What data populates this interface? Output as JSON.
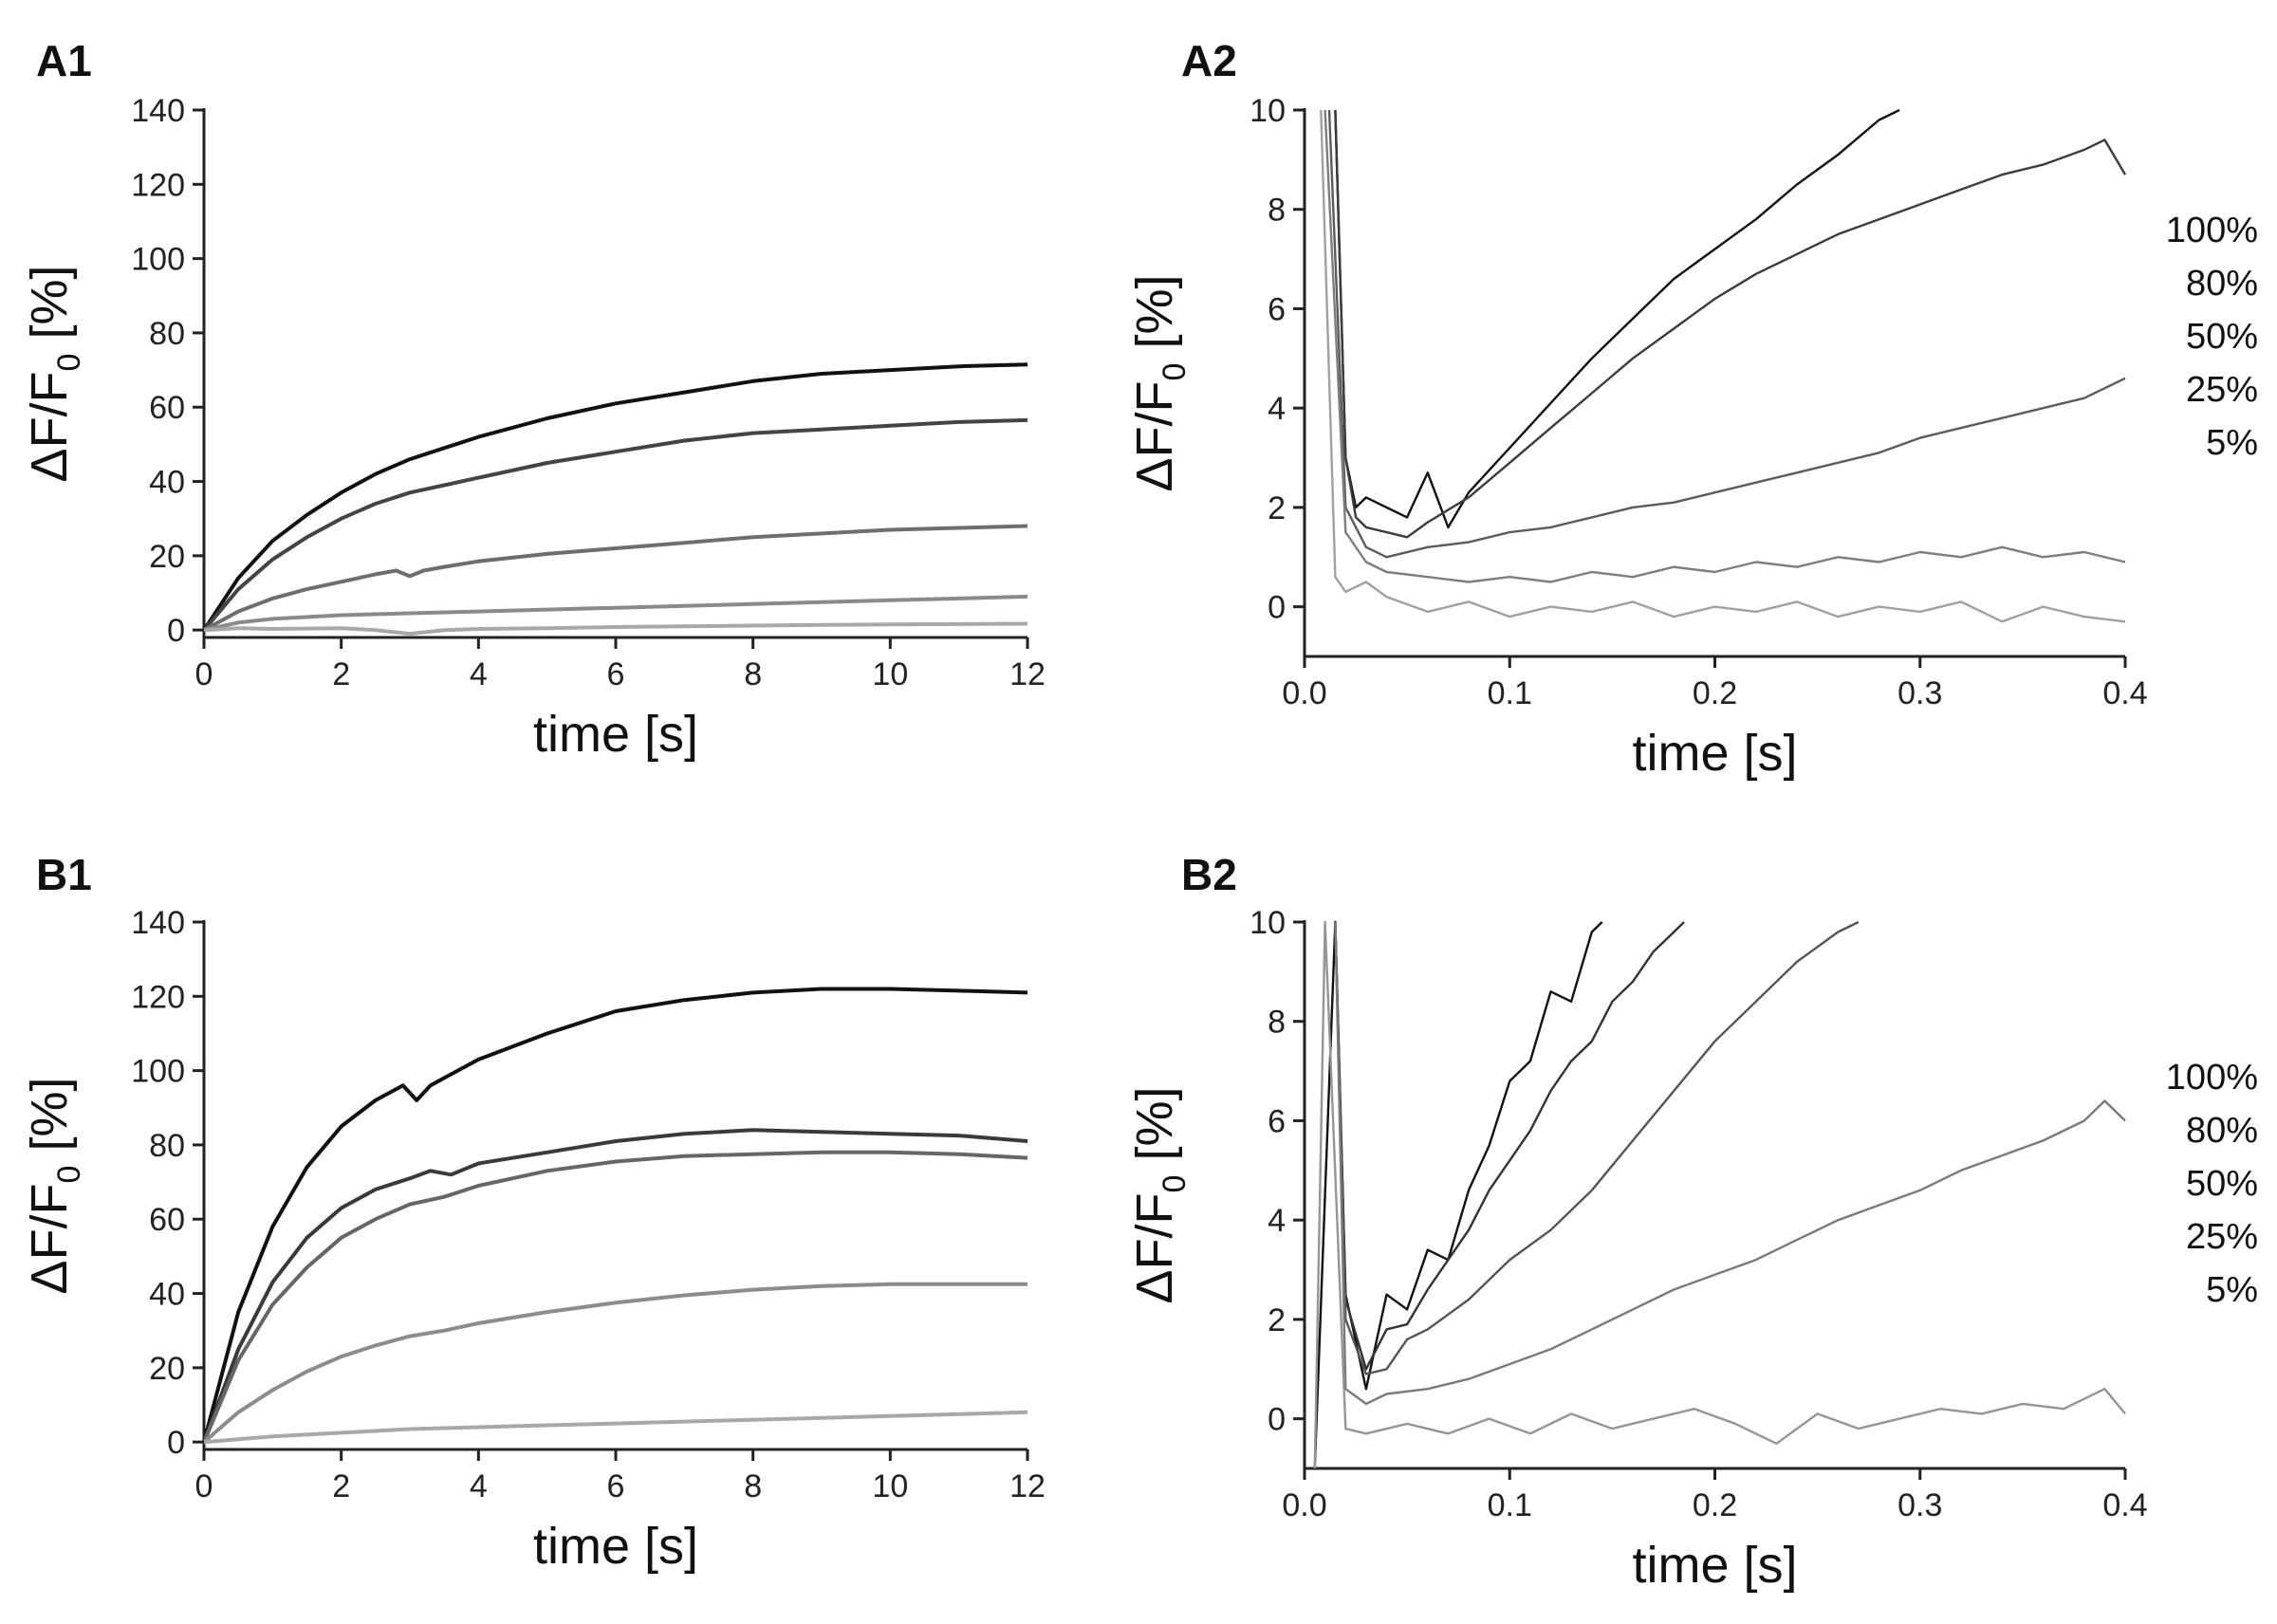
{
  "chart_data": [
    {
      "type": "line",
      "panel": "A1",
      "xlabel": "time [s]",
      "ylabel_main": "ΔF/F",
      "ylabel_sub": "0",
      "ylabel_unit": " [%]",
      "xlim": [
        0,
        12
      ],
      "ylim": [
        -2,
        140
      ],
      "xticks": [
        0,
        2,
        4,
        6,
        8,
        10,
        12
      ],
      "yticks": [
        0,
        20,
        40,
        60,
        80,
        100,
        120,
        140
      ],
      "xtick_decimals": 0,
      "series": [
        {
          "color": "#111111",
          "x": [
            0,
            0.5,
            1,
            1.5,
            2,
            2.5,
            3,
            3.5,
            4,
            5,
            6,
            7,
            8,
            9,
            10,
            11,
            12
          ],
          "y": [
            0,
            14,
            24,
            31,
            37,
            42,
            46,
            49,
            52,
            57,
            61,
            64,
            67,
            69,
            70,
            71,
            71.5
          ]
        },
        {
          "color": "#444444",
          "x": [
            0,
            0.5,
            1,
            1.5,
            2,
            2.5,
            3,
            3.5,
            4,
            5,
            6,
            7,
            8,
            9,
            10,
            11,
            12
          ],
          "y": [
            0,
            11,
            19,
            25,
            30,
            34,
            37,
            39,
            41,
            45,
            48,
            51,
            53,
            54,
            55,
            56,
            56.5
          ]
        },
        {
          "color": "#6e6e6e",
          "x": [
            0,
            0.5,
            1,
            1.5,
            2,
            2.5,
            2.8,
            3,
            3.2,
            3.5,
            4,
            5,
            6,
            7,
            8,
            9,
            10,
            11,
            12
          ],
          "y": [
            0,
            5,
            8.5,
            11,
            13,
            15,
            16,
            14.5,
            16,
            17,
            18.5,
            20.5,
            22,
            23.5,
            25,
            26,
            27,
            27.5,
            28
          ]
        },
        {
          "color": "#8a8a8a",
          "x": [
            0,
            0.5,
            1,
            2,
            3,
            4,
            5,
            6,
            7,
            8,
            9,
            10,
            11,
            12
          ],
          "y": [
            0,
            2,
            3,
            4,
            4.5,
            5,
            5.5,
            6,
            6.5,
            7,
            7.5,
            8,
            8.5,
            9
          ]
        },
        {
          "color": "#a8a8a8",
          "x": [
            0,
            0.5,
            1,
            2,
            2.5,
            3,
            3.5,
            4,
            5,
            6,
            7,
            8,
            9,
            10,
            11,
            12
          ],
          "y": [
            0,
            0.5,
            0.3,
            0.5,
            0,
            -1,
            0,
            0.3,
            0.5,
            0.8,
            1,
            1.2,
            1.4,
            1.5,
            1.6,
            1.7
          ]
        }
      ]
    },
    {
      "type": "line",
      "panel": "A2",
      "xlabel": "time [s]",
      "ylabel_main": "ΔF/F",
      "ylabel_sub": "0",
      "ylabel_unit": " [%]",
      "xlim": [
        0,
        0.4
      ],
      "ylim": [
        -1,
        10
      ],
      "xticks": [
        0.0,
        0.1,
        0.2,
        0.3,
        0.4
      ],
      "yticks": [
        0,
        2,
        4,
        6,
        8,
        10
      ],
      "xtick_decimals": 1,
      "legend_labels": [
        "100%",
        "80%",
        "50%",
        "25%",
        "5%"
      ],
      "series": [
        {
          "color": "#111111",
          "x": [
            0.015,
            0.02,
            0.025,
            0.03,
            0.04,
            0.05,
            0.06,
            0.07,
            0.08,
            0.1,
            0.12,
            0.14,
            0.16,
            0.18,
            0.2,
            0.22,
            0.24,
            0.26,
            0.28,
            0.29
          ],
          "y": [
            10,
            3,
            2,
            2.2,
            2.0,
            1.8,
            2.7,
            1.6,
            2.3,
            3.2,
            4.1,
            5.0,
            5.8,
            6.6,
            7.2,
            7.8,
            8.5,
            9.1,
            9.8,
            10
          ]
        },
        {
          "color": "#3c3c3c",
          "x": [
            0.015,
            0.02,
            0.025,
            0.03,
            0.04,
            0.05,
            0.06,
            0.08,
            0.1,
            0.12,
            0.14,
            0.16,
            0.18,
            0.2,
            0.22,
            0.24,
            0.26,
            0.28,
            0.3,
            0.32,
            0.34,
            0.36,
            0.38,
            0.39,
            0.4
          ],
          "y": [
            10,
            3,
            1.8,
            1.6,
            1.5,
            1.4,
            1.7,
            2.2,
            2.9,
            3.6,
            4.3,
            5.0,
            5.6,
            6.2,
            6.7,
            7.1,
            7.5,
            7.8,
            8.1,
            8.4,
            8.7,
            8.9,
            9.2,
            9.4,
            8.7
          ]
        },
        {
          "color": "#5c5c5c",
          "x": [
            0.012,
            0.02,
            0.03,
            0.04,
            0.06,
            0.08,
            0.1,
            0.12,
            0.14,
            0.16,
            0.18,
            0.2,
            0.22,
            0.24,
            0.26,
            0.28,
            0.3,
            0.32,
            0.34,
            0.36,
            0.38,
            0.4
          ],
          "y": [
            10,
            2,
            1.2,
            1.0,
            1.2,
            1.3,
            1.5,
            1.6,
            1.8,
            2.0,
            2.1,
            2.3,
            2.5,
            2.7,
            2.9,
            3.1,
            3.4,
            3.6,
            3.8,
            4.0,
            4.2,
            4.6
          ]
        },
        {
          "color": "#7e7e7e",
          "x": [
            0.01,
            0.02,
            0.03,
            0.04,
            0.06,
            0.08,
            0.1,
            0.12,
            0.14,
            0.16,
            0.18,
            0.2,
            0.22,
            0.24,
            0.26,
            0.28,
            0.3,
            0.32,
            0.34,
            0.36,
            0.38,
            0.4
          ],
          "y": [
            10,
            1.5,
            0.9,
            0.7,
            0.6,
            0.5,
            0.6,
            0.5,
            0.7,
            0.6,
            0.8,
            0.7,
            0.9,
            0.8,
            1.0,
            0.9,
            1.1,
            1.0,
            1.2,
            1.0,
            1.1,
            0.9
          ]
        },
        {
          "color": "#a0a0a0",
          "x": [
            0.008,
            0.015,
            0.02,
            0.03,
            0.04,
            0.06,
            0.08,
            0.1,
            0.12,
            0.14,
            0.16,
            0.18,
            0.2,
            0.22,
            0.24,
            0.26,
            0.28,
            0.3,
            0.32,
            0.34,
            0.36,
            0.38,
            0.4
          ],
          "y": [
            10,
            0.6,
            0.3,
            0.5,
            0.2,
            -0.1,
            0.1,
            -0.2,
            0.0,
            -0.1,
            0.1,
            -0.2,
            0.0,
            -0.1,
            0.1,
            -0.2,
            0.0,
            -0.1,
            0.1,
            -0.3,
            0.0,
            -0.2,
            -0.3
          ]
        }
      ]
    },
    {
      "type": "line",
      "panel": "B1",
      "xlabel": "time [s]",
      "ylabel_main": "ΔF/F",
      "ylabel_sub": "0",
      "ylabel_unit": " [%]",
      "xlim": [
        0,
        12
      ],
      "ylim": [
        -2,
        140
      ],
      "xticks": [
        0,
        2,
        4,
        6,
        8,
        10,
        12
      ],
      "yticks": [
        0,
        20,
        40,
        60,
        80,
        100,
        120,
        140
      ],
      "xtick_decimals": 0,
      "series": [
        {
          "color": "#111111",
          "x": [
            0,
            0.5,
            1,
            1.5,
            2,
            2.5,
            2.9,
            3.1,
            3.3,
            3.6,
            4,
            5,
            6,
            7,
            8,
            9,
            10,
            11,
            12
          ],
          "y": [
            0,
            35,
            58,
            74,
            85,
            92,
            96,
            92,
            96,
            99,
            103,
            110,
            116,
            119,
            121,
            122,
            122,
            121.5,
            121
          ]
        },
        {
          "color": "#3a3a3a",
          "x": [
            0,
            0.5,
            1,
            1.5,
            2,
            2.5,
            3,
            3.3,
            3.6,
            4,
            5,
            6,
            7,
            8,
            9,
            10,
            11,
            12
          ],
          "y": [
            0,
            25,
            43,
            55,
            63,
            68,
            71,
            73,
            72,
            75,
            78,
            81,
            83,
            84,
            83.5,
            83,
            82.5,
            81
          ]
        },
        {
          "color": "#666666",
          "x": [
            0,
            0.5,
            1,
            1.5,
            2,
            2.5,
            3,
            3.5,
            4,
            5,
            6,
            7,
            8,
            9,
            10,
            11,
            12
          ],
          "y": [
            0,
            22,
            37,
            47,
            55,
            60,
            64,
            66,
            69,
            73,
            75.5,
            77,
            77.5,
            78,
            78,
            77.5,
            76.5
          ]
        },
        {
          "color": "#8c8c8c",
          "x": [
            0,
            0.5,
            1,
            1.5,
            2,
            2.5,
            3,
            3.5,
            4,
            5,
            6,
            7,
            8,
            9,
            10,
            11,
            12
          ],
          "y": [
            0,
            8,
            14,
            19,
            23,
            26,
            28.5,
            30,
            32,
            35,
            37.5,
            39.5,
            41,
            42,
            42.5,
            42.5,
            42.5
          ]
        },
        {
          "color": "#a8a8a8",
          "x": [
            0,
            1,
            2,
            3,
            4,
            5,
            6,
            7,
            8,
            9,
            10,
            11,
            12
          ],
          "y": [
            0,
            1.5,
            2.5,
            3.5,
            4,
            4.5,
            5,
            5.5,
            6,
            6.5,
            7,
            7.5,
            8
          ]
        }
      ]
    },
    {
      "type": "line",
      "panel": "B2",
      "xlabel": "time [s]",
      "ylabel_main": "ΔF/F",
      "ylabel_sub": "0",
      "ylabel_unit": " [%]",
      "xlim": [
        0,
        0.4
      ],
      "ylim": [
        -1,
        10
      ],
      "xticks": [
        0.0,
        0.1,
        0.2,
        0.3,
        0.4
      ],
      "yticks": [
        0,
        2,
        4,
        6,
        8,
        10
      ],
      "xtick_decimals": 1,
      "legend_labels": [
        "100%",
        "80%",
        "50%",
        "25%",
        "5%"
      ],
      "series": [
        {
          "color": "#111111",
          "x": [
            0.005,
            0.015,
            0.02,
            0.03,
            0.04,
            0.05,
            0.06,
            0.07,
            0.08,
            0.09,
            0.1,
            0.11,
            0.12,
            0.13,
            0.14,
            0.145
          ],
          "y": [
            -1,
            10,
            2.5,
            0.6,
            2.5,
            2.2,
            3.4,
            3.2,
            4.6,
            5.5,
            6.8,
            7.2,
            8.6,
            8.4,
            9.8,
            10
          ]
        },
        {
          "color": "#333333",
          "x": [
            0.015,
            0.02,
            0.03,
            0.04,
            0.05,
            0.06,
            0.07,
            0.08,
            0.09,
            0.1,
            0.11,
            0.12,
            0.13,
            0.14,
            0.15,
            0.16,
            0.17,
            0.18,
            0.185
          ],
          "y": [
            10,
            2.4,
            1.0,
            1.8,
            1.9,
            2.6,
            3.2,
            3.8,
            4.6,
            5.2,
            5.8,
            6.6,
            7.2,
            7.6,
            8.4,
            8.8,
            9.4,
            9.8,
            10
          ]
        },
        {
          "color": "#555555",
          "x": [
            0.015,
            0.02,
            0.03,
            0.04,
            0.05,
            0.06,
            0.08,
            0.1,
            0.12,
            0.14,
            0.16,
            0.18,
            0.2,
            0.22,
            0.24,
            0.26,
            0.27
          ],
          "y": [
            10,
            2.0,
            0.9,
            1.0,
            1.6,
            1.8,
            2.4,
            3.2,
            3.8,
            4.6,
            5.6,
            6.6,
            7.6,
            8.4,
            9.2,
            9.8,
            10
          ]
        },
        {
          "color": "#7a7a7a",
          "x": [
            0.015,
            0.02,
            0.03,
            0.04,
            0.06,
            0.08,
            0.1,
            0.12,
            0.14,
            0.16,
            0.18,
            0.2,
            0.22,
            0.24,
            0.26,
            0.28,
            0.3,
            0.32,
            0.34,
            0.36,
            0.38,
            0.39,
            0.4
          ],
          "y": [
            10,
            0.6,
            0.3,
            0.5,
            0.6,
            0.8,
            1.1,
            1.4,
            1.8,
            2.2,
            2.6,
            2.9,
            3.2,
            3.6,
            4.0,
            4.3,
            4.6,
            5.0,
            5.3,
            5.6,
            6.0,
            6.4,
            6.0
          ]
        },
        {
          "color": "#959595",
          "x": [
            0.005,
            0.01,
            0.02,
            0.03,
            0.05,
            0.07,
            0.09,
            0.11,
            0.13,
            0.15,
            0.17,
            0.19,
            0.21,
            0.23,
            0.25,
            0.27,
            0.29,
            0.31,
            0.33,
            0.35,
            0.37,
            0.39,
            0.4
          ],
          "y": [
            -1,
            10,
            -0.2,
            -0.3,
            -0.1,
            -0.3,
            0.0,
            -0.3,
            0.1,
            -0.2,
            0.0,
            0.2,
            -0.1,
            -0.5,
            0.1,
            -0.2,
            0.0,
            0.2,
            0.1,
            0.3,
            0.2,
            0.6,
            0.1
          ]
        }
      ]
    }
  ]
}
